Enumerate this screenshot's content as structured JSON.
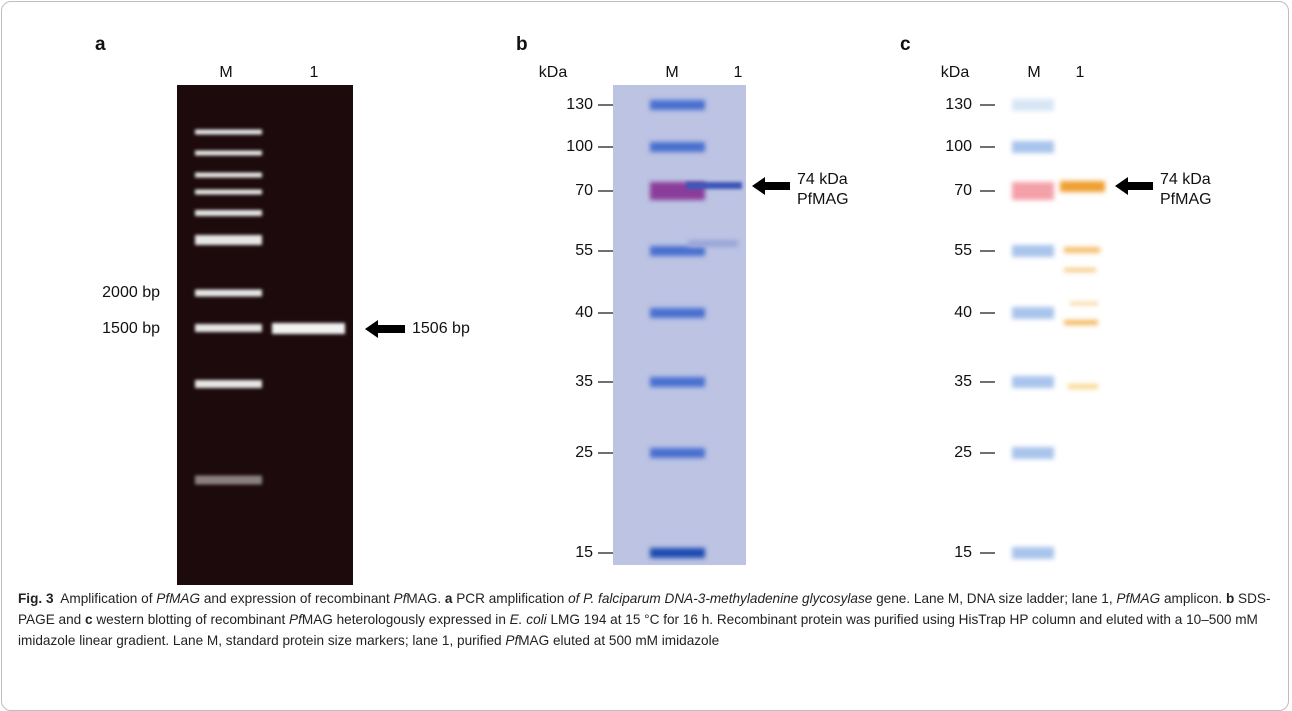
{
  "panel_a": {
    "label": "a",
    "lanes": [
      "M",
      "1"
    ],
    "markers": [
      "2000 bp",
      "1500 bp"
    ],
    "annotation": "1506 bp"
  },
  "panel_b": {
    "label": "b",
    "unit": "kDa",
    "lanes": [
      "M",
      "1"
    ],
    "markers": [
      "130",
      "100",
      "70",
      "55",
      "40",
      "35",
      "25",
      "15"
    ],
    "annotation": [
      "74 kDa",
      "PfMAG"
    ]
  },
  "panel_c": {
    "label": "c",
    "unit": "kDa",
    "lanes": [
      "M",
      "1"
    ],
    "markers": [
      "130",
      "100",
      "70",
      "55",
      "40",
      "35",
      "25",
      "15"
    ],
    "annotation": [
      "74 kDa",
      "PfMAG"
    ]
  },
  "caption": [
    "Fig. 3",
    "  Amplification of ",
    "PfMAG",
    " and expression of recombinant ",
    "Pf",
    "MAG. ",
    "a",
    " PCR amplification ",
    "of P. falciparum DNA-3-methyladenine glycosylase",
    " gene. Lane M, DNA size ladder; lane 1, ",
    "PfMAG",
    " amplicon. ",
    "b",
    " SDS-PAGE and ",
    "c",
    " western blotting of recombinant ",
    "Pf",
    "MAG heterologously expressed in ",
    "E. coli",
    " LMG 194 at 15 °C for 16 h. Recombinant protein was purified using HisTrap HP column and eluted with a 10–500 mM imidazole linear gradient. Lane M, standard protein size markers; lane 1, purified ",
    "Pf",
    "MAG eluted at 500 mM imidazole"
  ]
}
